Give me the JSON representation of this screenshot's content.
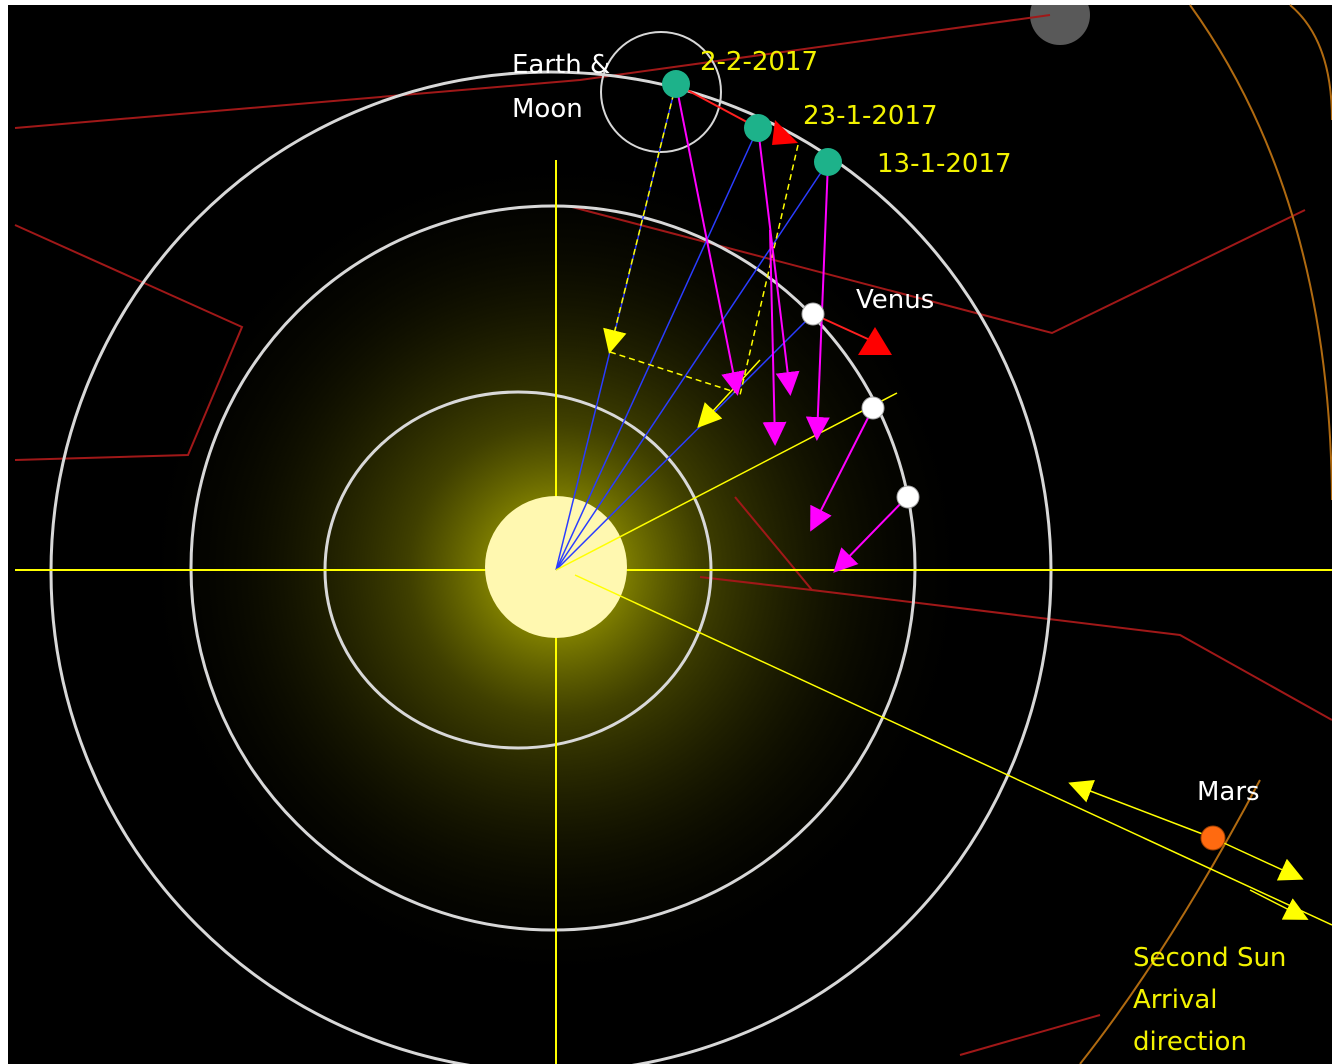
{
  "labels": {
    "earth_moon": [
      "Earth &",
      "Moon"
    ],
    "dates": [
      "2-2-2017",
      "23-1-2017",
      "13-1-2017"
    ],
    "venus": "Venus",
    "mars": "Mars",
    "second_sun": [
      "Second Sun",
      "Arrival",
      "direction"
    ]
  }
}
